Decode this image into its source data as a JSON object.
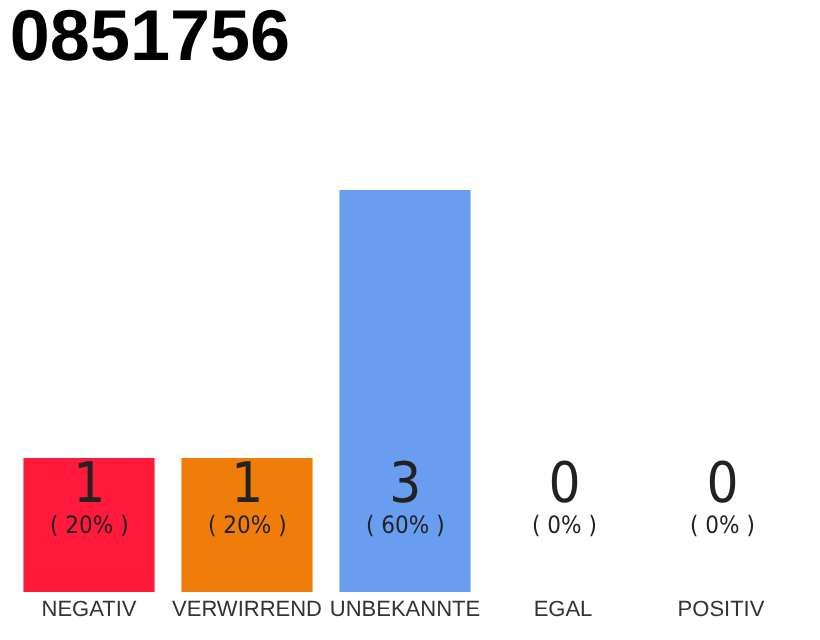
{
  "chart_data": {
    "type": "bar",
    "title": "0851756",
    "categories": [
      "NEGATIV",
      "VERWIRREND",
      "UNBEKANNTE",
      "EGAL",
      "POSITIV"
    ],
    "values": [
      1,
      1,
      3,
      0,
      0
    ],
    "colors": [
      "#ff1a3c",
      "#f07d0a",
      "#689df0",
      "#7cc86a",
      "#22a84a"
    ],
    "value_labels": [
      "1\n( 20% )",
      "1\n( 20% )",
      "3\n( 60% )",
      "0\n( 0% )",
      "0\n( 0% )"
    ],
    "grid": false,
    "legend": false
  }
}
